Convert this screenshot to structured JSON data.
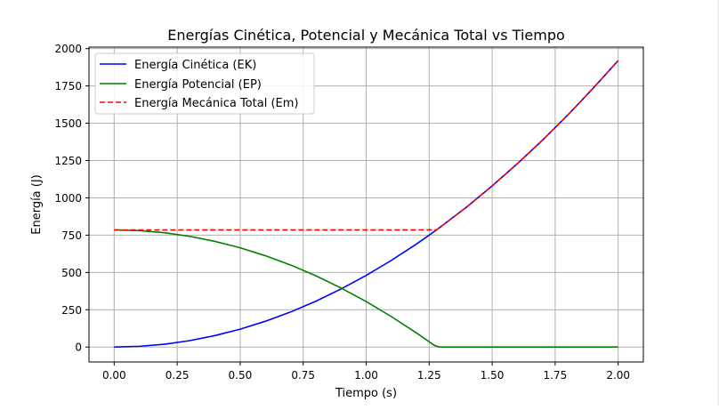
{
  "chart_data": {
    "type": "line",
    "title": "Energías Cinética, Potencial y Mecánica Total vs Tiempo",
    "xlabel": "Tiempo (s)",
    "ylabel": "Energía (J)",
    "xlim": [
      -0.1,
      2.1
    ],
    "ylim": [
      -100,
      2010
    ],
    "xticks": [
      0,
      0.25,
      0.5,
      0.75,
      1,
      1.25,
      1.5,
      1.75,
      2
    ],
    "xtick_labels": [
      "0.00",
      "0.25",
      "0.50",
      "0.75",
      "1.00",
      "1.25",
      "1.50",
      "1.75",
      "2.00"
    ],
    "yticks": [
      0,
      250,
      500,
      750,
      1000,
      1250,
      1500,
      1750,
      2000
    ],
    "ytick_labels": [
      "0",
      "250",
      "500",
      "750",
      "1000",
      "1250",
      "1500",
      "1750",
      "2000"
    ],
    "grid": true,
    "legend_position": "top-left",
    "series": [
      {
        "name": "Energía Cinética (EK)",
        "color": "#0000ff",
        "style": "solid",
        "x": [
          0,
          0.1,
          0.2,
          0.3,
          0.4,
          0.5,
          0.6,
          0.7,
          0.8,
          0.9,
          1.0,
          1.1,
          1.2,
          1.28,
          1.4,
          1.5,
          1.6,
          1.7,
          1.8,
          1.9,
          2.0
        ],
        "values": [
          0,
          5,
          19,
          43,
          77,
          120,
          173,
          235,
          307,
          389,
          480,
          581,
          691,
          786,
          940,
          1080,
          1229,
          1387,
          1555,
          1733,
          1920
        ]
      },
      {
        "name": "Energía Potencial (EP)",
        "color": "#008000",
        "style": "solid",
        "x": [
          0,
          0.1,
          0.2,
          0.3,
          0.4,
          0.5,
          0.6,
          0.7,
          0.8,
          0.9,
          1.0,
          1.1,
          1.2,
          1.27,
          1.29,
          1.4,
          1.6,
          1.8,
          2.0
        ],
        "values": [
          785,
          780,
          766,
          742,
          708,
          665,
          612,
          550,
          478,
          396,
          305,
          204,
          94,
          12,
          0,
          0,
          0,
          0,
          0
        ]
      },
      {
        "name": "Energía Mecánica Total (Em)",
        "color": "#ff0000",
        "style": "dashed",
        "x": [
          0,
          0.2,
          0.4,
          0.6,
          0.8,
          1.0,
          1.2,
          1.28,
          1.4,
          1.5,
          1.6,
          1.7,
          1.8,
          1.9,
          2.0
        ],
        "values": [
          785,
          785,
          785,
          785,
          785,
          785,
          785,
          786,
          940,
          1080,
          1229,
          1387,
          1555,
          1733,
          1920
        ]
      }
    ]
  }
}
